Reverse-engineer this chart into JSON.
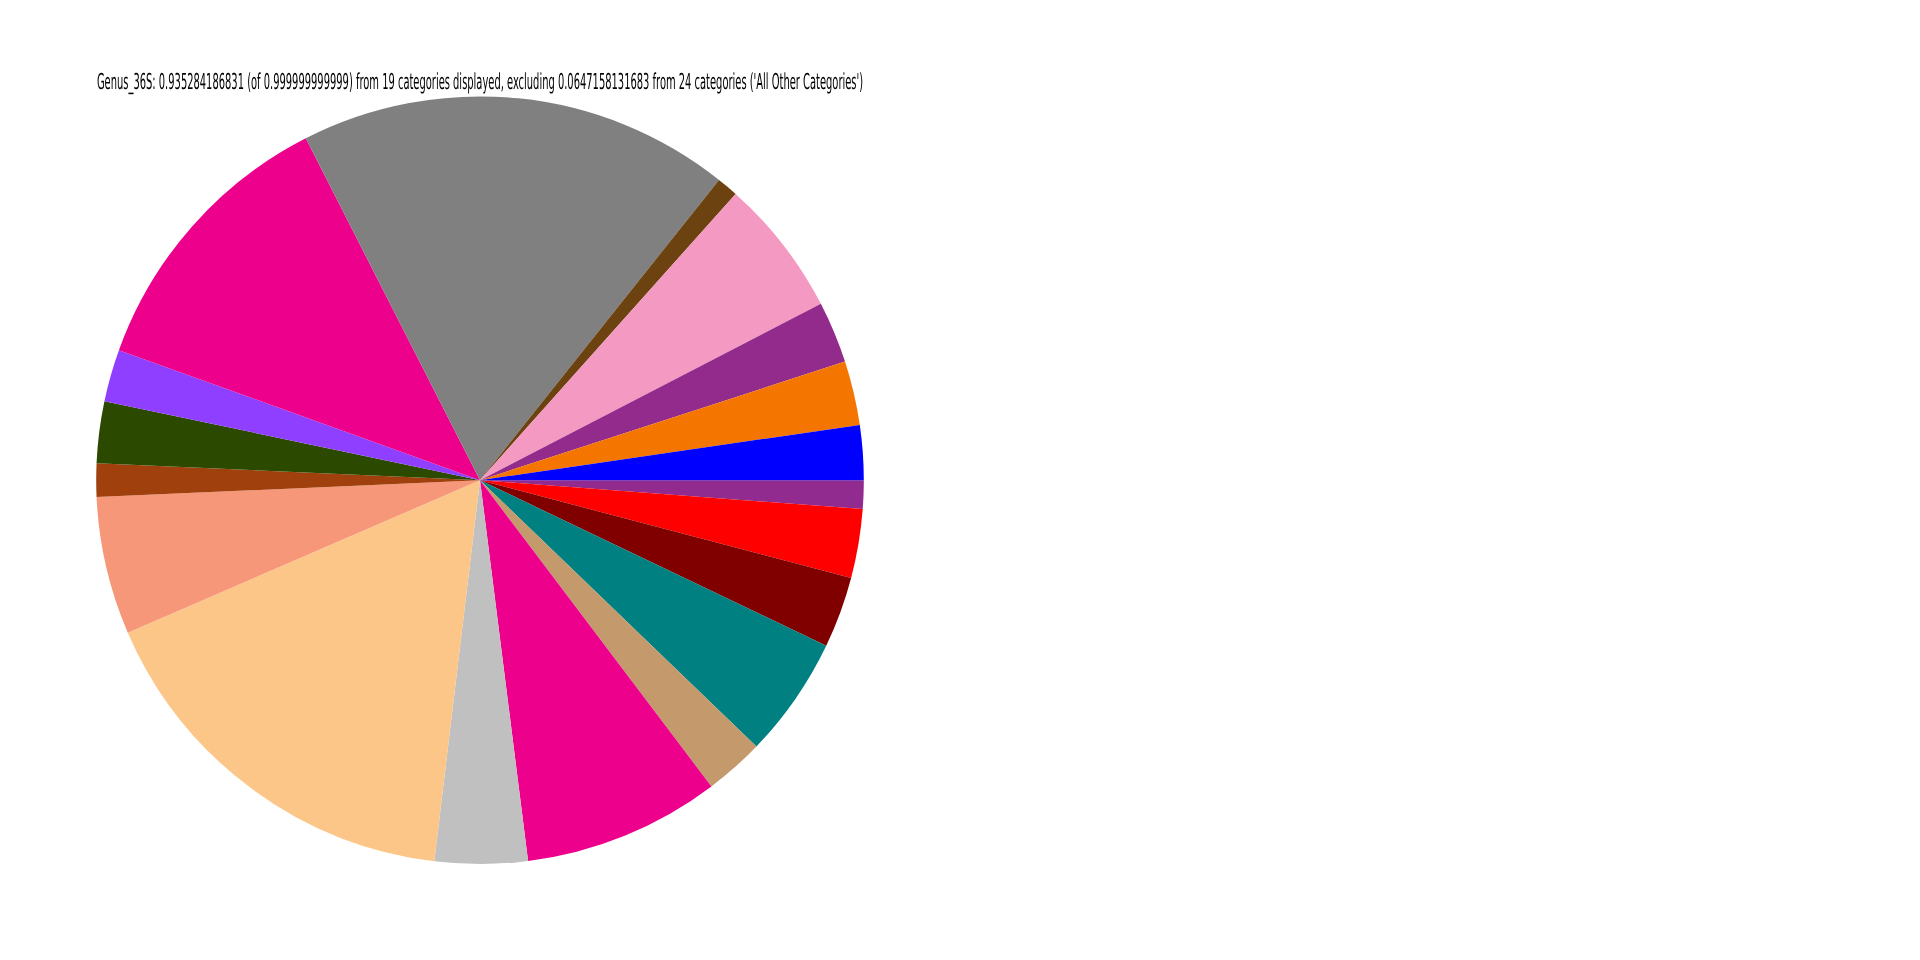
{
  "chart_data": {
    "type": "pie",
    "title": "Genus_36S: 0.935284186831 (of 0.999999999999) from 19 categories displayed, excluding 0.0647158131683 from 24 categories ('All Other Categories')",
    "categories": [
      null,
      null,
      null,
      null,
      null,
      null,
      null,
      null,
      null,
      null,
      null,
      null,
      null,
      null,
      null,
      null,
      null,
      null,
      null
    ],
    "values": [
      1.2,
      2.9,
      3.0,
      5.1,
      2.5,
      8.3,
      3.9,
      16.6,
      5.8,
      1.4,
      2.6,
      2.2,
      12.0,
      18.2,
      0.9,
      5.8,
      2.6,
      2.7,
      2.3
    ],
    "colors": [
      "#922b8f",
      "#ff0000",
      "#800000",
      "#008080",
      "#c49a6c",
      "#ec008c",
      "#c0c0c0",
      "#fdc689",
      "#f7977a",
      "#a0410d",
      "#2b4a00",
      "#8f3fff",
      "#ec008c",
      "#808080",
      "#6b4210",
      "#f49ac2",
      "#922b8c",
      "#f47500",
      "#0000ff"
    ],
    "legend": false
  }
}
